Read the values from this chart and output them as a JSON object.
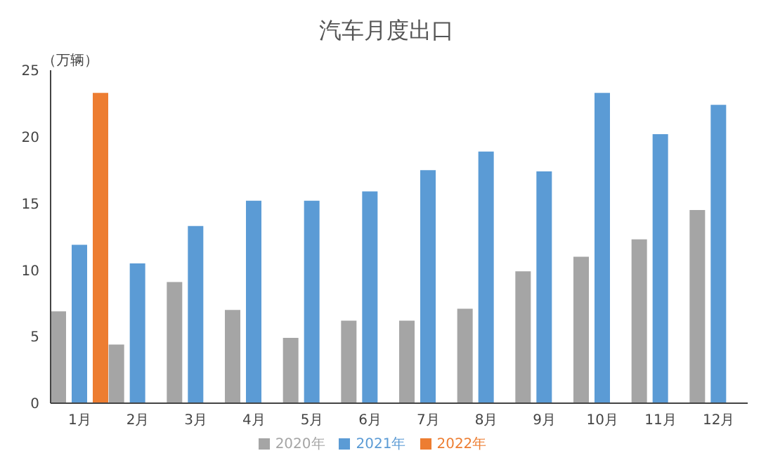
{
  "chart_data": {
    "type": "bar",
    "title": "汽车月度出口",
    "ylabel": "（万辆）",
    "categories": [
      "1月",
      "2月",
      "3月",
      "4月",
      "5月",
      "6月",
      "7月",
      "8月",
      "9月",
      "10月",
      "11月",
      "12月"
    ],
    "series": [
      {
        "name": "2020年",
        "color": "#a5a5a5",
        "values": [
          6.9,
          4.4,
          9.1,
          7.0,
          4.9,
          6.2,
          6.2,
          7.1,
          9.9,
          11.0,
          12.3,
          14.5
        ]
      },
      {
        "name": "2021年",
        "color": "#5b9bd5",
        "values": [
          11.9,
          10.5,
          13.3,
          15.2,
          15.2,
          15.9,
          17.5,
          18.9,
          17.4,
          23.3,
          20.2,
          22.4
        ]
      },
      {
        "name": "2022年",
        "color": "#ed7d31",
        "values": [
          23.3,
          null,
          null,
          null,
          null,
          null,
          null,
          null,
          null,
          null,
          null,
          null
        ]
      }
    ],
    "ylim": [
      0,
      25
    ],
    "yticks": [
      0,
      5,
      10,
      15,
      20,
      25
    ],
    "grid": false,
    "legend": "bottom"
  }
}
